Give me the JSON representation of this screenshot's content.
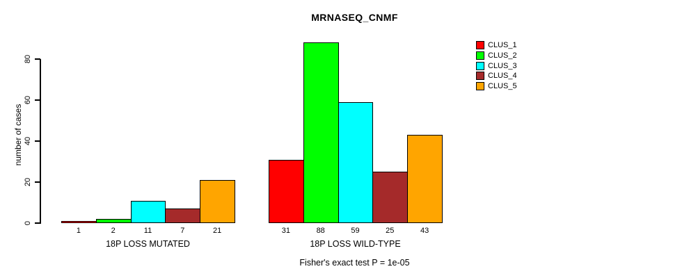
{
  "chart_data": {
    "type": "bar",
    "title": "MRNASEQ_CNMF",
    "ylabel": "number of cases",
    "xlabel": "",
    "yticks": [
      0,
      20,
      40,
      60,
      80
    ],
    "ylim": [
      0,
      88
    ],
    "grid": false,
    "legend_position": "right",
    "series_names": [
      "CLUS_1",
      "CLUS_2",
      "CLUS_3",
      "CLUS_4",
      "CLUS_5"
    ],
    "series_colors": [
      "#FF0000",
      "#00FF00",
      "#00FFFF",
      "#A52A2A",
      "#FFA500"
    ],
    "groups": [
      {
        "label": "18P LOSS MUTATED",
        "values": [
          1,
          2,
          11,
          7,
          21
        ]
      },
      {
        "label": "18P LOSS WILD-TYPE",
        "values": [
          31,
          88,
          59,
          25,
          43
        ]
      }
    ],
    "bar_value_labels_shown": true,
    "footnote": "Fisher's exact test P = 1e-05"
  },
  "legend": {
    "items": [
      {
        "label": "CLUS_1",
        "color": "#FF0000"
      },
      {
        "label": "CLUS_2",
        "color": "#00FF00"
      },
      {
        "label": "CLUS_3",
        "color": "#00FFFF"
      },
      {
        "label": "CLUS_4",
        "color": "#A52A2A"
      },
      {
        "label": "CLUS_5",
        "color": "#FFA500"
      }
    ]
  }
}
